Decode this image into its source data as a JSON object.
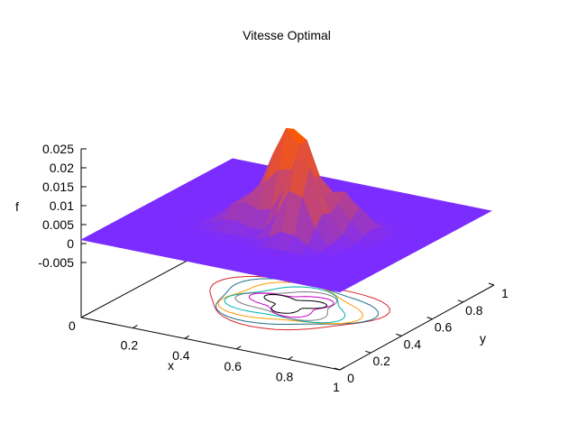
{
  "chart_data": {
    "type": "surface3d",
    "title": "Vitesse Optimal",
    "xlabel": "x",
    "ylabel": "y",
    "zlabel": "f",
    "xlim": [
      0,
      1
    ],
    "ylim": [
      0,
      1
    ],
    "zlim": [
      -0.005,
      0.025
    ],
    "x_ticks": [
      "0.2",
      "0.4",
      "0.6",
      "0.8",
      "1"
    ],
    "y_ticks": [
      "0",
      "0.2",
      "0.4",
      "0.6",
      "0.8",
      "1"
    ],
    "z_ticks": [
      "0.025",
      "0.02",
      "0.015",
      "0.01",
      "0.005",
      "0",
      "-0.005"
    ],
    "origin_label": "0",
    "grid": false,
    "base_plane_contours": true,
    "colors": {
      "surface_low": "#7b2cff",
      "surface_high": "#ff5a00",
      "contours": [
        "#d62728",
        "#1f6f8b",
        "#ff9900",
        "#00b0b0",
        "#7a7a7a",
        "#cc00cc",
        "#000000"
      ]
    },
    "peaks": [
      {
        "x": 0.42,
        "y": 0.58,
        "z": 0.012
      },
      {
        "x": 0.55,
        "y": 0.56,
        "z": 0.014
      },
      {
        "x": 0.5,
        "y": 0.5,
        "z": 0.02
      },
      {
        "x": 0.62,
        "y": 0.4,
        "z": 0.023
      },
      {
        "x": 0.7,
        "y": 0.55,
        "z": 0.011
      },
      {
        "x": 0.38,
        "y": 0.42,
        "z": 0.008
      }
    ],
    "baseline_f": 0.001
  }
}
